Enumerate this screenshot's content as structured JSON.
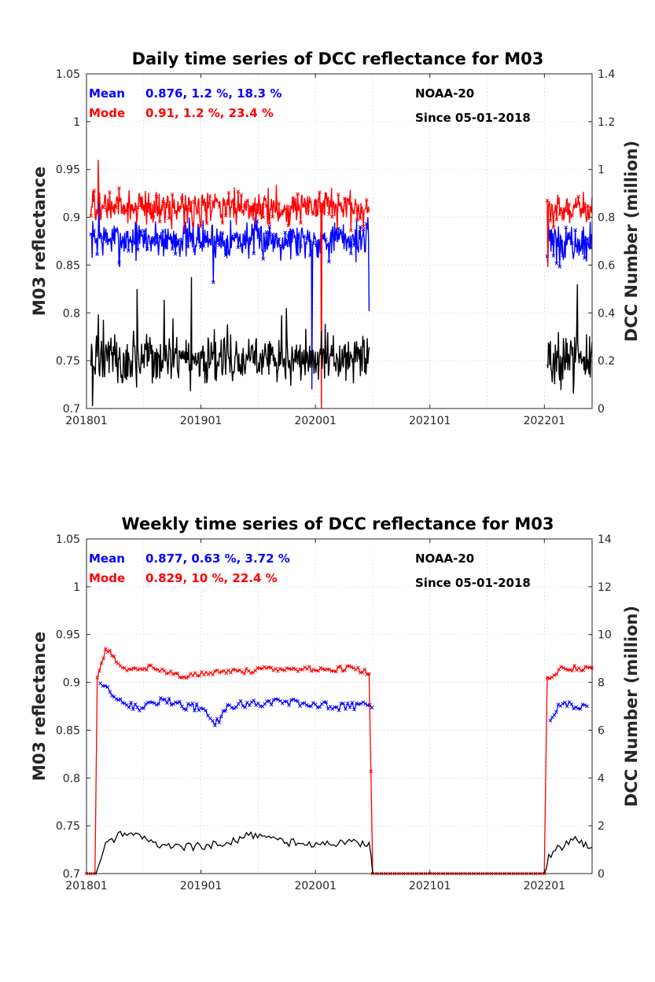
{
  "chart_data": [
    {
      "type": "line",
      "title": "Daily time series of DCC reflectance for M03",
      "ylabel": "M03 reflectance",
      "y2label": "DCC Number (million)",
      "xlim": [
        "2018-01",
        "2022-06"
      ],
      "ylim": [
        0.7,
        1.05
      ],
      "y2lim": [
        0,
        1.4
      ],
      "xticks": [
        "201801",
        "201901",
        "202001",
        "202101",
        "202201"
      ],
      "yticks": [
        "0.7",
        "0.75",
        "0.8",
        "0.85",
        "0.9",
        "0.95",
        "1",
        "1.05"
      ],
      "y2ticks": [
        "0",
        "0.2",
        "0.4",
        "0.6",
        "0.8",
        "1",
        "1.2",
        "1.4"
      ],
      "grid": true,
      "annotations": {
        "mean_label": "Mean",
        "mean_values": "0.876, 1.2 %, 18.3 %",
        "mode_label": "Mode",
        "mode_values": "0.91, 1.2 %, 23.4 %",
        "satellite": "NOAA-20",
        "since": "Since 05-01-2018"
      },
      "series": [
        {
          "name": "Mean",
          "color": "#0000ff",
          "axis": "left",
          "marker": "x",
          "segments": [
            {
              "start": "2018-01-15",
              "end": "2020-06-20",
              "level": 0.877,
              "spread": 0.012,
              "points": [
                [
                  "2018-02-10",
                  0.92
                ],
                [
                  "2018-04-15",
                  0.848
                ],
                [
                  "2019-02-10",
                  0.832
                ],
                [
                  "2019-12-20",
                  0.72
                ],
                [
                  "2020-06-20",
                  0.802
                ]
              ]
            },
            {
              "start": "2022-01-10",
              "end": "2022-06-01",
              "level": 0.872,
              "spread": 0.012,
              "points": [
                [
                  "2022-01-12",
                  0.85
                ]
              ]
            }
          ]
        },
        {
          "name": "Mode",
          "color": "#ff0000",
          "axis": "left",
          "marker": "x",
          "segments": [
            {
              "start": "2018-01-15",
              "end": "2020-06-20",
              "level": 0.91,
              "spread": 0.011,
              "points": [
                [
                  "2018-02-08",
                  0.96
                ],
                [
                  "2020-01-20",
                  0.7
                ]
              ]
            },
            {
              "start": "2022-01-10",
              "end": "2022-06-01",
              "level": 0.908,
              "spread": 0.01,
              "points": [
                [
                  "2022-01-12",
                  0.848
                ]
              ]
            }
          ]
        },
        {
          "name": "DCC Number",
          "color": "#000000",
          "axis": "right",
          "segments": [
            {
              "start": "2018-01-15",
              "end": "2020-06-20",
              "level": 0.2,
              "spread": 0.06,
              "points": [
                [
                  "2018-01-20",
                  0.01
                ],
                [
                  "2018-06-10",
                  0.5
                ],
                [
                  "2018-12-01",
                  0.55
                ],
                [
                  "2019-09-15",
                  0.39
                ]
              ]
            },
            {
              "start": "2022-01-10",
              "end": "2022-06-01",
              "level": 0.2,
              "spread": 0.07,
              "points": [
                [
                  "2022-04-15",
                  0.52
                ]
              ]
            }
          ]
        }
      ]
    },
    {
      "type": "line",
      "title": "Weekly time series of DCC reflectance for M03",
      "ylabel": "M03 reflectance",
      "y2label": "DCC Number (million)",
      "xlim": [
        "2018-01",
        "2022-06"
      ],
      "ylim": [
        0.7,
        1.05
      ],
      "y2lim": [
        0,
        14
      ],
      "xticks": [
        "201801",
        "201901",
        "202001",
        "202101",
        "202201"
      ],
      "yticks": [
        "0.7",
        "0.75",
        "0.8",
        "0.85",
        "0.9",
        "0.95",
        "1",
        "1.05"
      ],
      "y2ticks": [
        "0",
        "2",
        "4",
        "6",
        "8",
        "10",
        "12",
        "14"
      ],
      "grid": true,
      "annotations": {
        "mean_label": "Mean",
        "mean_values": "0.877, 0.63 %, 3.72 %",
        "mode_label": "Mode",
        "mode_values": "0.829, 10 %, 22.4 %",
        "satellite": "NOAA-20",
        "since": "Since 05-01-2018"
      },
      "series": [
        {
          "name": "Mean",
          "color": "#0000ff",
          "axis": "left",
          "marker": "x",
          "points": [
            [
              "2018-02-15",
              0.899
            ],
            [
              "2018-03-15",
              0.89
            ],
            [
              "2018-05-01",
              0.878
            ],
            [
              "2018-07-01",
              0.873
            ],
            [
              "2018-09-01",
              0.882
            ],
            [
              "2018-11-01",
              0.875
            ],
            [
              "2019-01-01",
              0.873
            ],
            [
              "2019-02-15",
              0.855
            ],
            [
              "2019-04-01",
              0.876
            ],
            [
              "2019-07-01",
              0.878
            ],
            [
              "2019-10-01",
              0.88
            ],
            [
              "2020-01-01",
              0.877
            ],
            [
              "2020-03-01",
              0.874
            ],
            [
              "2020-06-15",
              0.876
            ],
            [
              "2022-01-20",
              0.86
            ],
            [
              "2022-02-15",
              0.877
            ],
            [
              "2022-05-15",
              0.875
            ]
          ]
        },
        {
          "name": "Mode",
          "color": "#ff0000",
          "axis": "left",
          "marker": "x",
          "points": [
            [
              "2018-01-01",
              0.7
            ],
            [
              "2018-01-28",
              0.7
            ],
            [
              "2018-02-05",
              0.905
            ],
            [
              "2018-03-01",
              0.935
            ],
            [
              "2018-05-01",
              0.915
            ],
            [
              "2018-08-01",
              0.915
            ],
            [
              "2018-11-01",
              0.905
            ],
            [
              "2019-02-01",
              0.91
            ],
            [
              "2019-06-01",
              0.912
            ],
            [
              "2019-10-01",
              0.915
            ],
            [
              "2020-02-01",
              0.913
            ],
            [
              "2020-05-01",
              0.915
            ],
            [
              "2020-06-20",
              0.909
            ],
            [
              "2020-07-01",
              0.7
            ],
            [
              "2021-12-31",
              0.7
            ],
            [
              "2022-01-10",
              0.905
            ],
            [
              "2022-03-01",
              0.915
            ],
            [
              "2022-06-01",
              0.915
            ]
          ]
        },
        {
          "name": "DCC Number",
          "color": "#000000",
          "axis": "right",
          "points": [
            [
              "2018-01-01",
              0
            ],
            [
              "2018-02-01",
              0
            ],
            [
              "2018-03-01",
              1.3
            ],
            [
              "2018-05-01",
              1.7
            ],
            [
              "2018-08-01",
              1.3
            ],
            [
              "2018-11-01",
              1.1
            ],
            [
              "2019-03-01",
              1.2
            ],
            [
              "2019-06-01",
              1.6
            ],
            [
              "2019-10-01",
              1.3
            ],
            [
              "2020-02-01",
              1.2
            ],
            [
              "2020-06-20",
              1.3
            ],
            [
              "2020-07-01",
              0
            ],
            [
              "2021-12-31",
              0
            ],
            [
              "2022-01-15",
              0.8
            ],
            [
              "2022-04-01",
              1.4
            ],
            [
              "2022-06-01",
              1.1
            ]
          ]
        }
      ]
    }
  ]
}
